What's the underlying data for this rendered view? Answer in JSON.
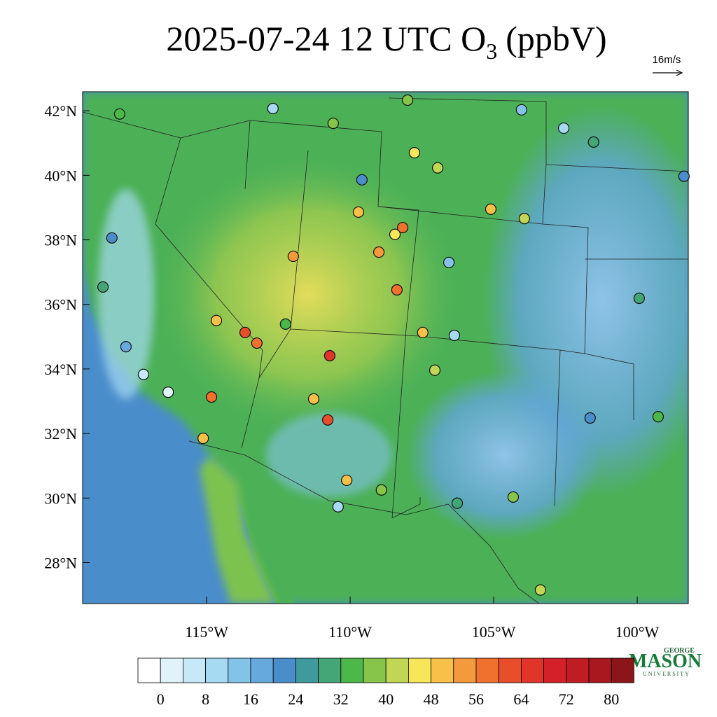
{
  "title": {
    "main": "2025-07-24 12 UTC O",
    "subscript": "3",
    "unit": "(ppbV)"
  },
  "wind_reference": "16m/s",
  "map": {
    "lon_range": [
      -119.32,
      -98.22
    ],
    "lat_range": [
      26.73,
      42.59
    ],
    "lat_ticks": [
      {
        "value": 42,
        "label": "42°N"
      },
      {
        "value": 40,
        "label": "40°N"
      },
      {
        "value": 38,
        "label": "38°N"
      },
      {
        "value": 36,
        "label": "36°N"
      },
      {
        "value": 34,
        "label": "34°N"
      },
      {
        "value": 32,
        "label": "32°N"
      },
      {
        "value": 30,
        "label": "30°N"
      },
      {
        "value": 28,
        "label": "28°N"
      }
    ],
    "lon_ticks": [
      {
        "value": -115,
        "label": "115°W"
      },
      {
        "value": -110,
        "label": "110°W"
      },
      {
        "value": -105,
        "label": "105°W"
      },
      {
        "value": -100,
        "label": "100°W"
      }
    ]
  },
  "colorbar": {
    "levels": [
      0,
      4,
      8,
      12,
      16,
      20,
      24,
      28,
      32,
      36,
      40,
      44,
      48,
      52,
      56,
      60,
      64,
      68,
      72,
      76,
      80
    ],
    "labels": [
      0,
      8,
      16,
      24,
      32,
      40,
      48,
      56,
      64,
      72,
      80
    ],
    "colors": [
      "#ffffff",
      "#e0f3fb",
      "#c6e8f7",
      "#a6daf3",
      "#84c3e8",
      "#66a9dc",
      "#4a8dcb",
      "#3f9a9e",
      "#44a677",
      "#4cb849",
      "#86c44a",
      "#c1d654",
      "#f7e65a",
      "#f8c048",
      "#f59a3c",
      "#f0702e",
      "#e84e2a",
      "#e03528",
      "#d42028",
      "#c01c24",
      "#a8181e",
      "#8b1518"
    ]
  },
  "stations": [
    {
      "lon": -118.03,
      "lat": 41.9,
      "o3": 33
    },
    {
      "lon": -112.69,
      "lat": 42.07,
      "o3": 10
    },
    {
      "lon": -110.59,
      "lat": 41.61,
      "o3": 38
    },
    {
      "lon": -108.0,
      "lat": 42.33,
      "o3": 38
    },
    {
      "lon": -104.03,
      "lat": 42.03,
      "o3": 12
    },
    {
      "lon": -102.56,
      "lat": 41.46,
      "o3": 10
    },
    {
      "lon": -101.52,
      "lat": 41.03,
      "o3": 30
    },
    {
      "lon": -107.76,
      "lat": 40.7,
      "o3": 46
    },
    {
      "lon": -106.95,
      "lat": 40.23,
      "o3": 40
    },
    {
      "lon": -109.59,
      "lat": 39.86,
      "o3": 22
    },
    {
      "lon": -109.71,
      "lat": 38.86,
      "o3": 50
    },
    {
      "lon": -108.17,
      "lat": 38.38,
      "o3": 58
    },
    {
      "lon": -108.44,
      "lat": 38.17,
      "o3": 47
    },
    {
      "lon": -109.0,
      "lat": 37.62,
      "o3": 55
    },
    {
      "lon": -105.1,
      "lat": 38.95,
      "o3": 50
    },
    {
      "lon": -103.93,
      "lat": 38.66,
      "o3": 42
    },
    {
      "lon": -111.98,
      "lat": 37.49,
      "o3": 55
    },
    {
      "lon": -108.37,
      "lat": 36.45,
      "o3": 57
    },
    {
      "lon": -106.56,
      "lat": 37.3,
      "o3": 12
    },
    {
      "lon": -99.93,
      "lat": 36.19,
      "o3": 30
    },
    {
      "lon": -113.66,
      "lat": 35.13,
      "o3": 62
    },
    {
      "lon": -113.25,
      "lat": 34.8,
      "o3": 58
    },
    {
      "lon": -114.66,
      "lat": 35.5,
      "o3": 50
    },
    {
      "lon": -110.71,
      "lat": 34.41,
      "o3": 64
    },
    {
      "lon": -107.47,
      "lat": 35.13,
      "o3": 49
    },
    {
      "lon": -106.37,
      "lat": 35.04,
      "o3": 10
    },
    {
      "lon": -107.05,
      "lat": 33.96,
      "o3": 42
    },
    {
      "lon": -114.83,
      "lat": 33.13,
      "o3": 56
    },
    {
      "lon": -115.12,
      "lat": 31.85,
      "o3": 48
    },
    {
      "lon": -111.27,
      "lat": 33.07,
      "o3": 48
    },
    {
      "lon": -110.78,
      "lat": 32.42,
      "o3": 60
    },
    {
      "lon": -110.12,
      "lat": 30.55,
      "o3": 48
    },
    {
      "lon": -110.42,
      "lat": 29.73,
      "o3": 8
    },
    {
      "lon": -108.91,
      "lat": 30.25,
      "o3": 38
    },
    {
      "lon": -106.27,
      "lat": 29.84,
      "o3": 28
    },
    {
      "lon": -104.32,
      "lat": 30.03,
      "o3": 38
    },
    {
      "lon": -103.37,
      "lat": 27.15,
      "o3": 40
    },
    {
      "lon": -99.27,
      "lat": 32.52,
      "o3": 32
    },
    {
      "lon": -101.64,
      "lat": 32.48,
      "o3": 20
    },
    {
      "lon": -118.3,
      "lat": 38.06,
      "o3": 22
    },
    {
      "lon": -118.61,
      "lat": 36.54,
      "o3": 30
    },
    {
      "lon": -117.2,
      "lat": 33.83,
      "o3": 4
    },
    {
      "lon": -116.34,
      "lat": 33.28,
      "o3": 2
    },
    {
      "lon": -117.81,
      "lat": 34.69,
      "o3": 18
    },
    {
      "lon": -98.37,
      "lat": 39.97,
      "o3": 20
    },
    {
      "lon": -112.25,
      "lat": 35.39,
      "o3": 32
    }
  ],
  "logo": {
    "top": "GEORGE",
    "main": "MASON",
    "bottom": "UNIVERSITY"
  }
}
